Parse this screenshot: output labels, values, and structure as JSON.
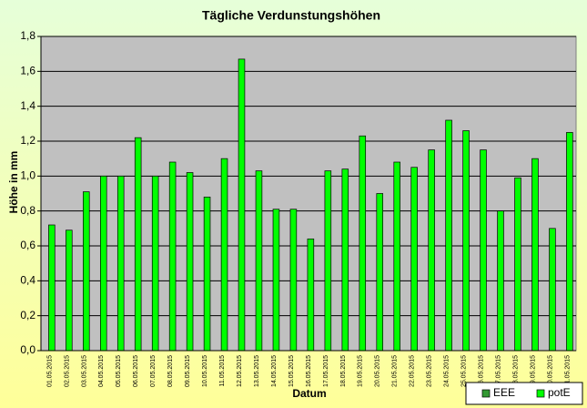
{
  "chart_data": {
    "type": "bar",
    "title": "Tägliche Verdunstungshöhen",
    "xlabel": "Datum",
    "ylabel": "Höhe in mm",
    "categories": [
      "01.05.2015",
      "02.05.2015",
      "03.05.2015",
      "04.05.2015",
      "05.05.2015",
      "06.05.2015",
      "07.05.2015",
      "08.05.2015",
      "09.05.2015",
      "10.05.2015",
      "11.05.2015",
      "12.05.2015",
      "13.05.2015",
      "14.05.2015",
      "15.05.2015",
      "16.05.2015",
      "17.05.2015",
      "18.05.2015",
      "19.05.2015",
      "20.05.2015",
      "21.05.2015",
      "22.05.2015",
      "23.05.2015",
      "24.05.2015",
      "25.05.2015",
      "26.05.2015",
      "27.05.2015",
      "28.05.2015",
      "29.05.2015",
      "30.05.2015",
      "31.05.2015"
    ],
    "series": [
      {
        "name": "EEE",
        "color": "#339933",
        "values": [
          null,
          null,
          null,
          null,
          null,
          null,
          null,
          null,
          null,
          null,
          null,
          null,
          null,
          null,
          null,
          null,
          null,
          null,
          null,
          null,
          null,
          null,
          null,
          null,
          null,
          null,
          null,
          null,
          null,
          null,
          null
        ]
      },
      {
        "name": "potE",
        "color": "#00ff00",
        "values": [
          0.72,
          0.69,
          0.91,
          1.0,
          1.0,
          1.22,
          1.0,
          1.08,
          1.02,
          0.88,
          1.1,
          1.67,
          1.03,
          0.81,
          0.81,
          0.64,
          1.03,
          1.04,
          1.23,
          0.9,
          1.08,
          1.05,
          1.15,
          1.32,
          1.26,
          1.15,
          0.8,
          0.99,
          1.1,
          0.7,
          1.25
        ]
      }
    ],
    "ylim": [
      0,
      1.8
    ],
    "yticks": [
      {
        "value": 0,
        "label": "0,0"
      },
      {
        "value": 0.2,
        "label": "0,2"
      },
      {
        "value": 0.4,
        "label": "0,4"
      },
      {
        "value": 0.6,
        "label": "0,6"
      },
      {
        "value": 0.8,
        "label": "0,8"
      },
      {
        "value": 1.0,
        "label": "1,0"
      },
      {
        "value": 1.2,
        "label": "1,2"
      },
      {
        "value": 1.4,
        "label": "1,4"
      },
      {
        "value": 1.6,
        "label": "1,6"
      },
      {
        "value": 1.8,
        "label": "1,8"
      }
    ],
    "grid": true,
    "legend": "bottom-right",
    "plot_background": "#c0c0c0"
  }
}
